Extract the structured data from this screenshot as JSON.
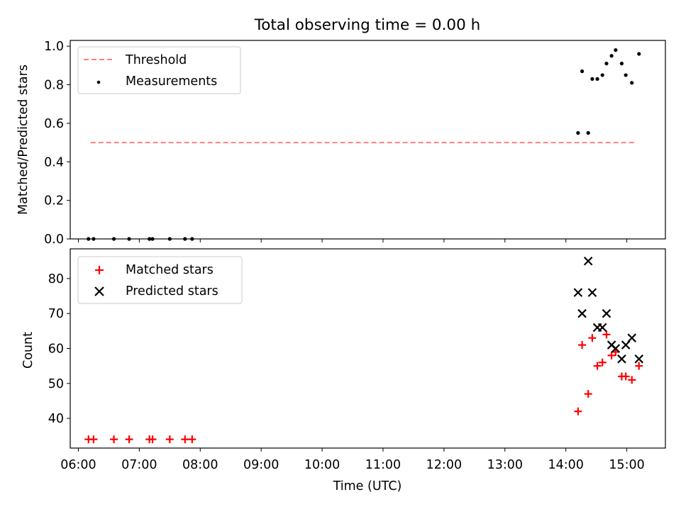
{
  "chart_data": [
    {
      "id": "top",
      "type": "scatter",
      "title": "Total observing time = 0.00 h",
      "xlabel": "",
      "ylabel": "Matched/Predicted stars",
      "xlim": [
        "05:52",
        "15:38"
      ],
      "ylim": [
        0,
        1.03
      ],
      "yticks": [
        "0.0",
        "0.2",
        "0.4",
        "0.6",
        "0.8",
        "1.0"
      ],
      "grid": false,
      "legend_position": "top-left",
      "series": [
        {
          "name": "Threshold",
          "kind": "dashed-line",
          "color": "#ff7f7f",
          "x": [
            "06:12",
            "15:10"
          ],
          "y": [
            0.5,
            0.5
          ]
        },
        {
          "name": "Measurements",
          "kind": "points",
          "color": "#000000",
          "x": [
            "06:10",
            "06:15",
            "06:35",
            "06:50",
            "07:10",
            "07:13",
            "07:30",
            "07:45",
            "07:52",
            "14:12",
            "14:16",
            "14:22",
            "14:26",
            "14:31",
            "14:36",
            "14:40",
            "14:45",
            "14:49",
            "14:55",
            "14:59",
            "15:05",
            "15:12"
          ],
          "y": [
            0,
            0,
            0,
            0,
            0,
            0,
            0,
            0,
            0,
            0.55,
            0.87,
            0.55,
            0.83,
            0.83,
            0.85,
            0.91,
            0.95,
            0.98,
            0.91,
            0.85,
            0.81,
            0.96
          ]
        }
      ]
    },
    {
      "id": "bottom",
      "type": "scatter",
      "title": "",
      "xlabel": "Time (UTC)",
      "ylabel": "Count",
      "xlim": [
        "05:52",
        "15:38"
      ],
      "ylim": [
        31.5,
        88.5
      ],
      "xticks": [
        "06:00",
        "07:00",
        "08:00",
        "09:00",
        "10:00",
        "11:00",
        "12:00",
        "13:00",
        "14:00",
        "15:00"
      ],
      "yticks": [
        "40",
        "50",
        "60",
        "70",
        "80"
      ],
      "grid": false,
      "legend_position": "top-left",
      "series": [
        {
          "name": "Matched stars",
          "marker": "plus",
          "color": "#ff0000",
          "x": [
            "06:10",
            "06:15",
            "06:35",
            "06:50",
            "07:10",
            "07:13",
            "07:30",
            "07:45",
            "07:52",
            "14:12",
            "14:16",
            "14:22",
            "14:26",
            "14:31",
            "14:36",
            "14:40",
            "14:45",
            "14:49",
            "14:55",
            "14:59",
            "15:05",
            "15:12"
          ],
          "y": [
            34,
            34,
            34,
            34,
            34,
            34,
            34,
            34,
            34,
            42,
            61,
            47,
            63,
            55,
            56,
            64,
            58,
            59,
            52,
            52,
            51,
            55
          ]
        },
        {
          "name": "Predicted stars",
          "marker": "x",
          "color": "#000000",
          "x": [
            "14:12",
            "14:16",
            "14:22",
            "14:26",
            "14:31",
            "14:36",
            "14:40",
            "14:45",
            "14:49",
            "14:55",
            "14:59",
            "15:05",
            "15:12"
          ],
          "y": [
            76,
            70,
            85,
            76,
            66,
            66,
            70,
            61,
            60,
            57,
            61,
            63,
            57
          ]
        }
      ]
    }
  ]
}
